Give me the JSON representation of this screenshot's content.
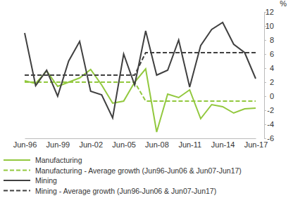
{
  "chart_data": {
    "type": "line",
    "ylabel": "%",
    "categories": [
      "Jun-96",
      null,
      null,
      "Jun-99",
      null,
      null,
      "Jun-02",
      null,
      null,
      "Jun-05",
      null,
      null,
      "Jun-08",
      null,
      null,
      "Jun-11",
      null,
      null,
      "Jun-14",
      null,
      null,
      "Jun-17"
    ],
    "series": [
      {
        "name": "Manufacturing",
        "color": "#92c83e",
        "line_style": "solid",
        "values": [
          2.2,
          1.8,
          3.6,
          1.4,
          2.0,
          2.6,
          3.8,
          1.6,
          -1.0,
          -0.7,
          2.0,
          3.9,
          -5.1,
          0.3,
          -0.2,
          0.9,
          -3.2,
          -1.2,
          -1.5,
          -2.4,
          -1.8,
          -1.7
        ]
      },
      {
        "name": "Manufacturing - Average growth (Jun96-Jun06 & Jun07-Jun17)",
        "color": "#92c83e",
        "line_style": "dashed",
        "values": [
          2.0,
          2.0,
          2.0,
          2.0,
          2.0,
          2.0,
          2.0,
          2.0,
          2.0,
          2.0,
          2.0,
          -0.7,
          -0.7,
          -0.7,
          -0.7,
          -0.7,
          -0.7,
          -0.7,
          -0.7,
          -0.7,
          -0.7,
          -0.7
        ]
      },
      {
        "name": "Mining",
        "color": "#404040",
        "line_style": "solid",
        "values": [
          9.0,
          1.5,
          3.7,
          0.0,
          5.0,
          7.8,
          0.7,
          0.2,
          -3.1,
          6.0,
          1.6,
          9.3,
          3.0,
          3.7,
          8.0,
          1.3,
          7.2,
          9.5,
          10.5,
          7.4,
          6.2,
          2.5
        ]
      },
      {
        "name": "Mining - Average growth (Jun96-Jun06 & Jun07-Jun17)",
        "color": "#404040",
        "line_style": "dashed",
        "values": [
          3.0,
          3.0,
          3.0,
          3.0,
          3.0,
          3.0,
          3.0,
          3.0,
          3.0,
          3.0,
          3.0,
          6.2,
          6.2,
          6.2,
          6.2,
          6.2,
          6.2,
          6.2,
          6.2,
          6.2,
          6.2,
          6.2
        ]
      }
    ],
    "ylim": [
      -6,
      12
    ],
    "yticks": [
      -6,
      -4,
      -2,
      0,
      2,
      4,
      6,
      8,
      10,
      12
    ],
    "grid": false,
    "legend": "bottom"
  }
}
